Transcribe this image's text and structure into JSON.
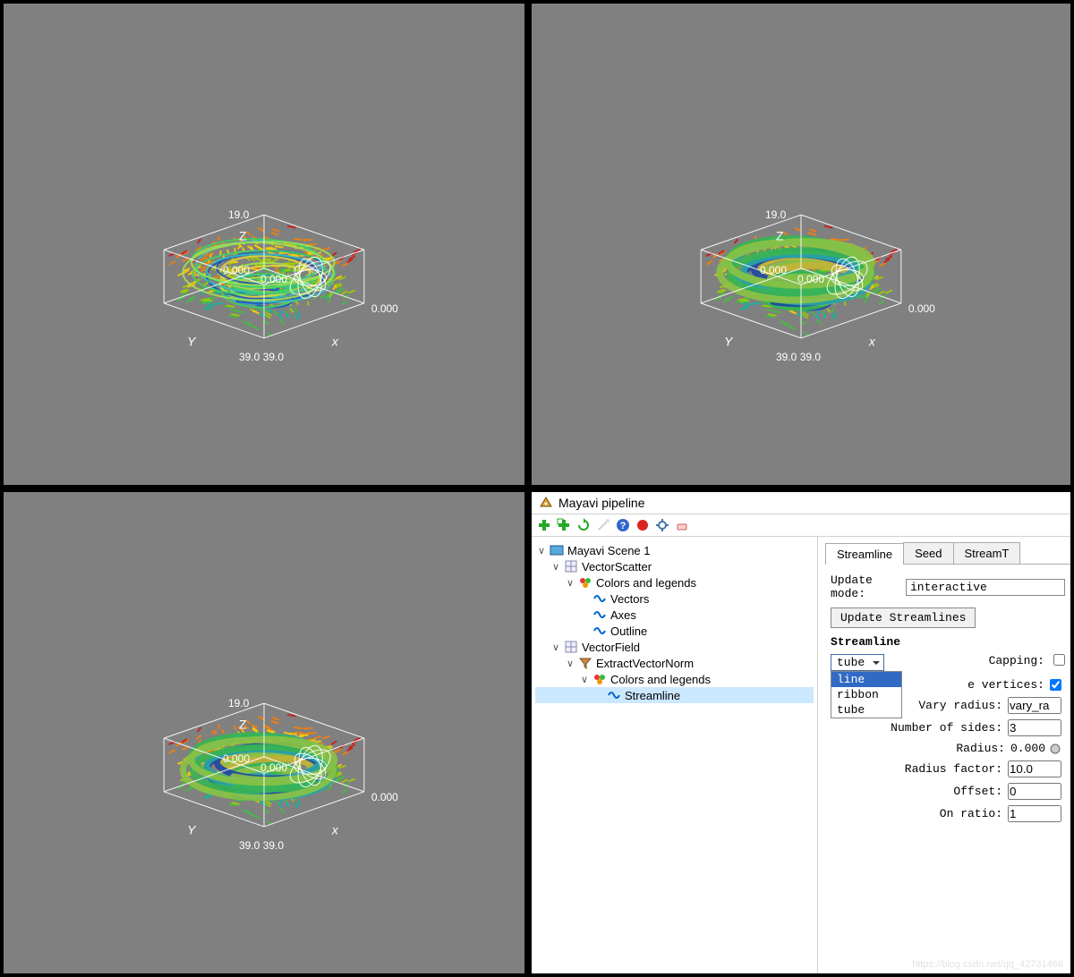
{
  "viewports": {
    "axis_x": "x",
    "axis_y": "Y",
    "axis_z": "Z",
    "z_top_tick": "19.0",
    "origin_tick": "0.000",
    "x_origin_tick": "0.000",
    "x_far_tick": "0.000",
    "bottom_tick_left": "39.0",
    "bottom_tick_right": "39.0",
    "bg_color": "#808080",
    "cube_line_color": "#ffffff",
    "colormap": [
      "#d01515",
      "#ff7f00",
      "#ffd000",
      "#a0d000",
      "#40c040",
      "#00c0a0",
      "#00b0e0",
      "#3050d0"
    ],
    "streamline_colors": [
      "#2050c0",
      "#30c0c0",
      "#40d060",
      "#a0e050",
      "#e0d040"
    ]
  },
  "pipeline": {
    "window_title": "Mayavi pipeline",
    "toolbar_icons": [
      "add-green",
      "add-green-2",
      "refresh-green",
      "wand-gray",
      "help-blue",
      "record-red",
      "gear-blue",
      "eraser"
    ],
    "tree": [
      {
        "level": 0,
        "icon": "scene",
        "label": "Mayavi Scene 1",
        "expanded": true
      },
      {
        "level": 1,
        "icon": "grid",
        "label": "VectorScatter",
        "expanded": true
      },
      {
        "level": 2,
        "icon": "palette",
        "label": "Colors and legends",
        "expanded": true
      },
      {
        "level": 3,
        "icon": "module",
        "label": "Vectors"
      },
      {
        "level": 3,
        "icon": "module",
        "label": "Axes"
      },
      {
        "level": 3,
        "icon": "module",
        "label": "Outline"
      },
      {
        "level": 1,
        "icon": "grid",
        "label": "VectorField",
        "expanded": true
      },
      {
        "level": 2,
        "icon": "filter",
        "label": "ExtractVectorNorm",
        "expanded": true
      },
      {
        "level": 3,
        "icon": "palette",
        "label": "Colors and legends",
        "expanded": true
      },
      {
        "level": 4,
        "icon": "module",
        "label": "Streamline",
        "selected": true
      }
    ]
  },
  "props": {
    "tabs": [
      "Streamline",
      "Seed",
      "StreamT"
    ],
    "active_tab": 0,
    "update_mode_label": "Update mode:",
    "update_mode_value": "interactive",
    "update_button": "Update Streamlines",
    "section": "Streamline",
    "type_select_value": "tube",
    "type_options": [
      "line",
      "ribbon",
      "tube"
    ],
    "type_highlight": "line",
    "capping_label": "Capping:",
    "capping_checked": false,
    "vertices_label_suffix": "e vertices:",
    "vertices_checked": true,
    "vary_radius_label": "Vary radius:",
    "vary_radius_value": "vary_ra",
    "number_of_sides_label": "Number of sides:",
    "number_of_sides_value": "3",
    "radius_label": "Radius:",
    "radius_value": "0.000",
    "radius_factor_label": "Radius factor:",
    "radius_factor_value": "10.0",
    "offset_label": "Offset:",
    "offset_value": "0",
    "on_ratio_label": "On ratio:",
    "on_ratio_value": "1"
  },
  "watermark": "https://blog.csdn.net/qq_42731466"
}
